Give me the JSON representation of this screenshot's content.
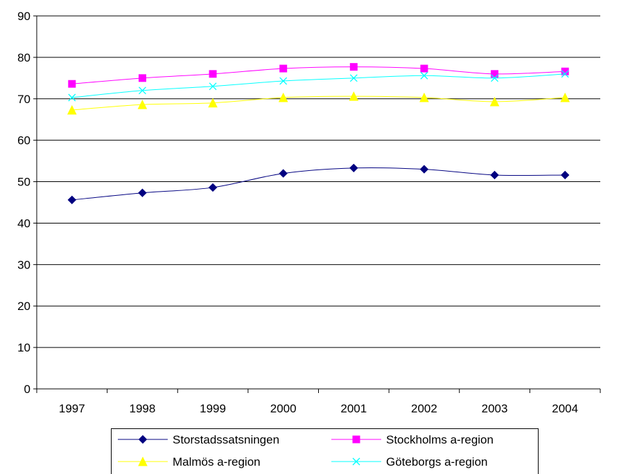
{
  "chart_data": {
    "type": "line",
    "title": "",
    "xlabel": "",
    "ylabel": "",
    "categories": [
      "1997",
      "1998",
      "1999",
      "2000",
      "2001",
      "2002",
      "2003",
      "2004"
    ],
    "ylim": [
      0,
      90
    ],
    "yticks": [
      0,
      10,
      20,
      30,
      40,
      50,
      60,
      70,
      80,
      90
    ],
    "grid": "horizontal",
    "legend_position": "bottom",
    "series": [
      {
        "name": "Storstadssatsningen",
        "color": "#000080",
        "marker": "diamond",
        "values": [
          45.6,
          47.3,
          48.6,
          52.0,
          53.3,
          53.0,
          51.6,
          51.6
        ]
      },
      {
        "name": "Stockholms a-region",
        "color": "#FF00FF",
        "marker": "square",
        "values": [
          73.6,
          75.0,
          76.0,
          77.3,
          77.7,
          77.3,
          76.0,
          76.6
        ]
      },
      {
        "name": "Malmös a-region",
        "color": "#FFFF00",
        "marker": "triangle",
        "values": [
          67.3,
          68.6,
          69.0,
          70.3,
          70.6,
          70.3,
          69.3,
          70.3
        ]
      },
      {
        "name": "Göteborgs a-region",
        "color": "#00FFFF",
        "marker": "x",
        "values": [
          70.3,
          72.0,
          73.0,
          74.3,
          75.0,
          75.6,
          75.0,
          76.0
        ]
      }
    ]
  }
}
